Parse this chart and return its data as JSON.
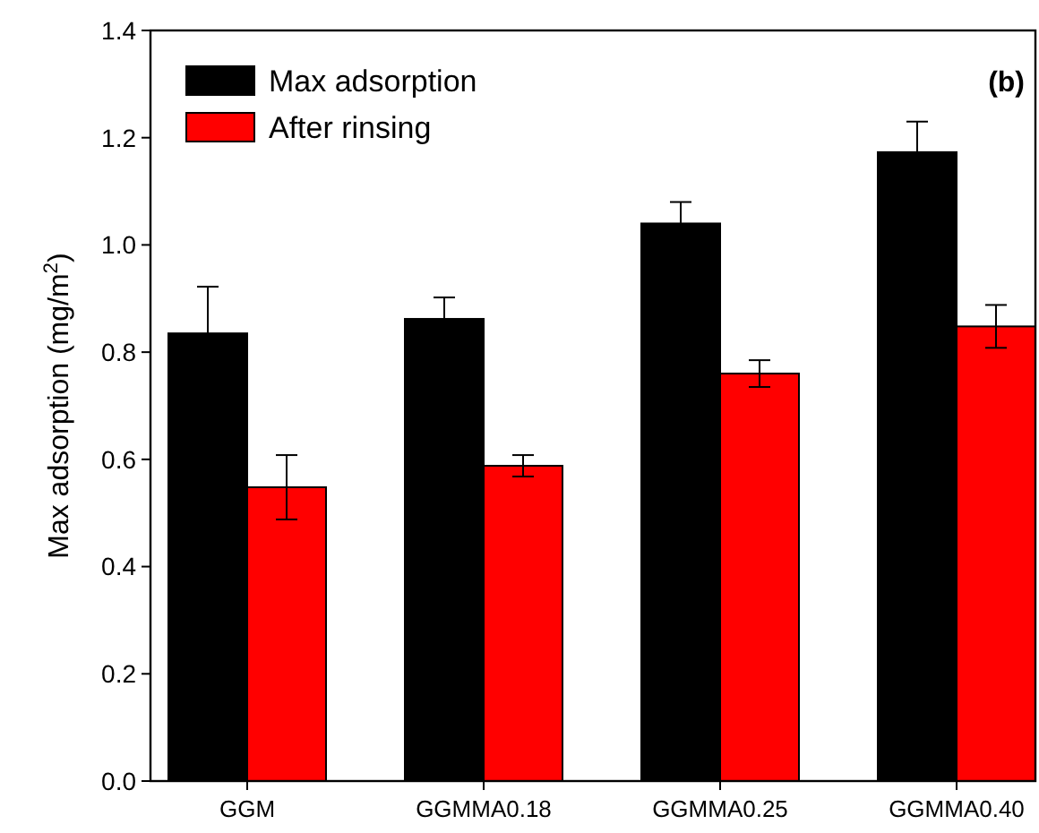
{
  "chart_data": {
    "type": "bar",
    "ylabel": "Max adsorption (mg/m$^{2}$)",
    "annotations": [
      "(b)"
    ],
    "categories": [
      "GGM",
      "GGMMA0.18",
      "GGMMA0.25",
      "GGMMA0.40"
    ],
    "series": [
      {
        "name": "Max adsorption",
        "color": "#000000",
        "values": [
          0.835,
          0.862,
          1.04,
          1.173
        ],
        "errors": [
          0.087,
          0.04,
          0.04,
          0.057
        ]
      },
      {
        "name": "After rinsing",
        "color": "#ff0000",
        "values": [
          0.548,
          0.588,
          0.76,
          0.848
        ],
        "errors": [
          0.06,
          0.02,
          0.025,
          0.04
        ]
      }
    ],
    "ylim": [
      0,
      1.4
    ],
    "yticks": [
      {
        "value": 0,
        "label": "0.0"
      },
      {
        "value": 0.2,
        "label": "0.2"
      },
      {
        "value": 0.4,
        "label": "0.4"
      },
      {
        "value": 0.6,
        "label": "0.6"
      },
      {
        "value": 0.8,
        "label": "0.8"
      },
      {
        "value": 1,
        "label": "1.0"
      },
      {
        "value": 1.2,
        "label": "1.2"
      },
      {
        "value": 1.4,
        "label": "1.4"
      }
    ],
    "grid": false,
    "legend": "top left"
  }
}
